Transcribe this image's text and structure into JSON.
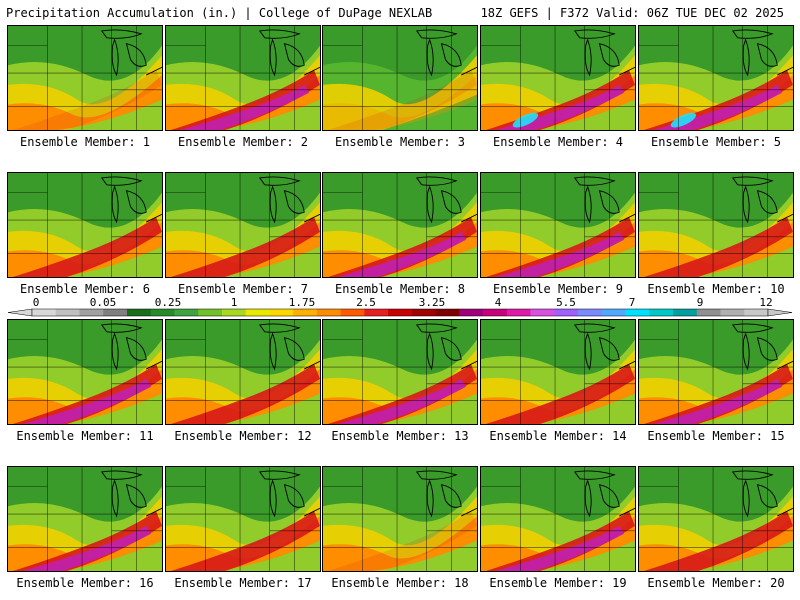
{
  "header": {
    "title": "Precipitation Accumulation (in.) | College of DuPage NEXLAB",
    "run": "18Z GEFS | F372 Valid: 06Z TUE DEC 02 2025"
  },
  "panels": [
    {
      "label": "Ensemble Member: 1",
      "level": 0.45
    },
    {
      "label": "Ensemble Member: 2",
      "level": 0.7
    },
    {
      "label": "Ensemble Member: 3",
      "level": 0.25
    },
    {
      "label": "Ensemble Member: 4",
      "level": 0.8
    },
    {
      "label": "Ensemble Member: 5",
      "level": 0.85
    },
    {
      "label": "Ensemble Member: 6",
      "level": 0.55
    },
    {
      "label": "Ensemble Member: 7",
      "level": 0.55
    },
    {
      "label": "Ensemble Member: 8",
      "level": 0.75
    },
    {
      "label": "Ensemble Member: 9",
      "level": 0.7
    },
    {
      "label": "Ensemble Member: 10",
      "level": 0.55
    },
    {
      "label": "Ensemble Member: 11",
      "level": 0.7
    },
    {
      "label": "Ensemble Member: 12",
      "level": 0.6
    },
    {
      "label": "Ensemble Member: 13",
      "level": 0.7
    },
    {
      "label": "Ensemble Member: 14",
      "level": 0.6
    },
    {
      "label": "Ensemble Member: 15",
      "level": 0.75
    },
    {
      "label": "Ensemble Member: 16",
      "level": 0.75
    },
    {
      "label": "Ensemble Member: 17",
      "level": 0.65
    },
    {
      "label": "Ensemble Member: 18",
      "level": 0.45
    },
    {
      "label": "Ensemble Member: 19",
      "level": 0.75
    },
    {
      "label": "Ensemble Member: 20",
      "level": 0.55
    }
  ],
  "colorbar": {
    "labels": [
      "0",
      "0.05",
      "0.25",
      "1",
      "1.75",
      "2.5",
      "3.25",
      "4",
      "5.5",
      "7",
      "9",
      "12"
    ],
    "colors": [
      "#d8d8d8",
      "#c0c0c0",
      "#a0a0a0",
      "#808080",
      "#1a6e1a",
      "#2a8a2a",
      "#3fa33f",
      "#72c02a",
      "#a8d820",
      "#e8e800",
      "#ffd700",
      "#ffb000",
      "#ff8c00",
      "#ff5a00",
      "#e62020",
      "#c80000",
      "#a00000",
      "#800000",
      "#a0007a",
      "#c8007a",
      "#e01aa8",
      "#d850e0",
      "#a060ff",
      "#7a8aff",
      "#50a8ff",
      "#00e0ff",
      "#00c8c8",
      "#00a0a0",
      "#909090",
      "#b0b0b0",
      "#c8c8c8"
    ]
  }
}
